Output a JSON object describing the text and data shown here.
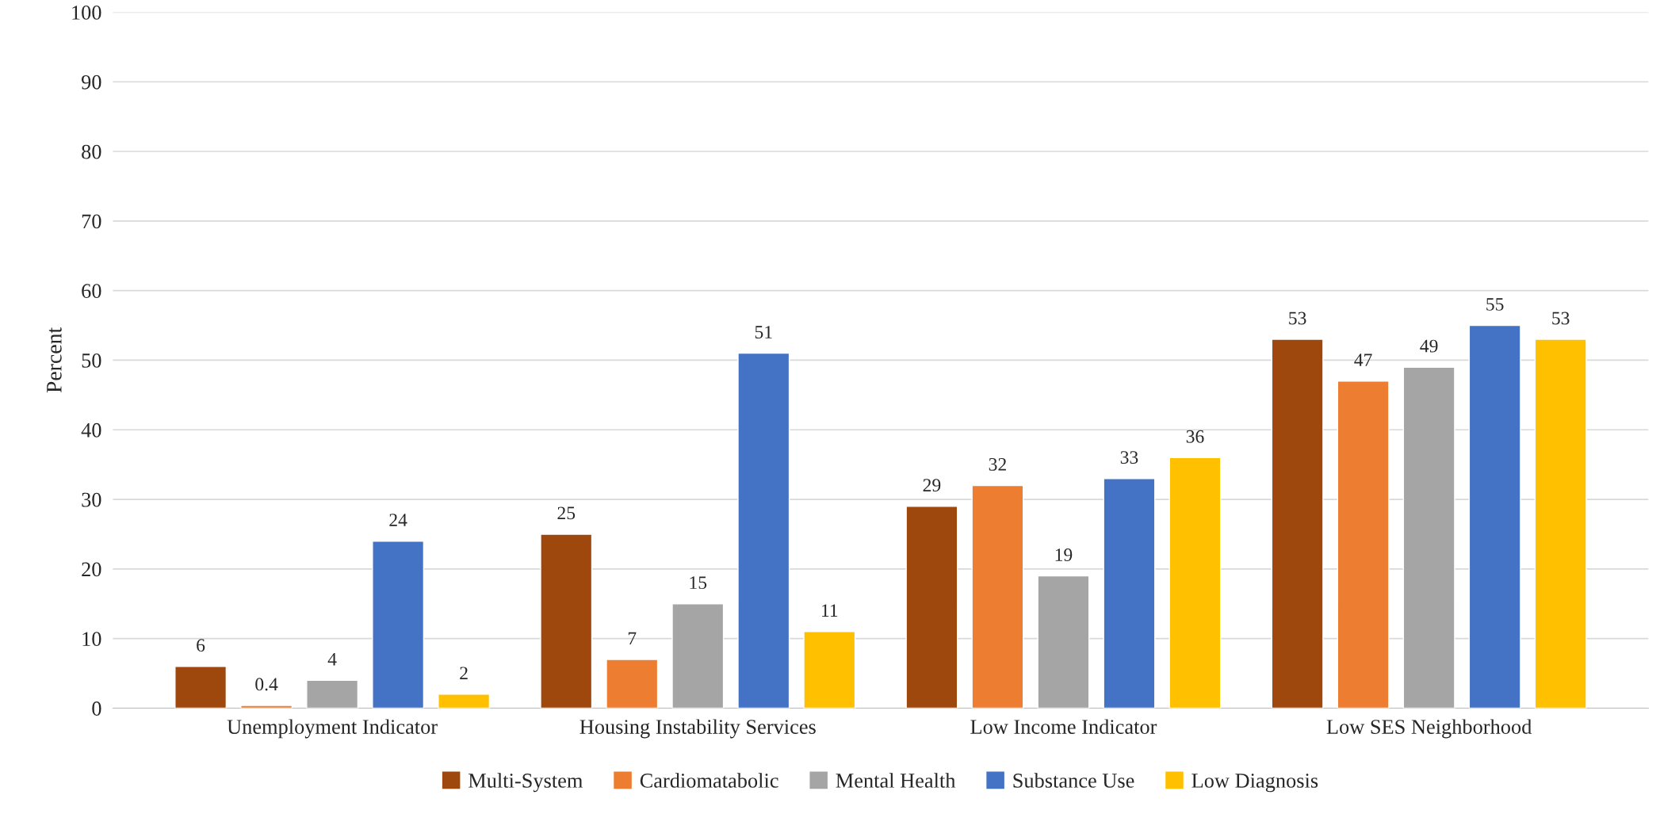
{
  "chart_data": {
    "type": "bar",
    "ylabel": "Percent",
    "categories": [
      "Unemployment Indicator",
      "Housing Instability Services",
      "Low Income Indicator",
      "Low SES Neighborhood"
    ],
    "series": [
      {
        "name": "Multi-System",
        "color": "#9e480e",
        "values": [
          6,
          25,
          29,
          53
        ]
      },
      {
        "name": "Cardiomatabolic",
        "color": "#ed7d31",
        "values": [
          0.4,
          7,
          32,
          47
        ]
      },
      {
        "name": "Mental Health",
        "color": "#a5a5a5",
        "values": [
          4,
          15,
          19,
          49
        ]
      },
      {
        "name": "Substance Use",
        "color": "#4472c4",
        "values": [
          24,
          51,
          33,
          55
        ]
      },
      {
        "name": "Low Diagnosis",
        "color": "#ffc000",
        "values": [
          2,
          11,
          36,
          53
        ]
      }
    ],
    "ylim": [
      0,
      100
    ],
    "yticks": [
      0,
      10,
      20,
      30,
      40,
      50,
      60,
      70,
      80,
      90,
      100
    ],
    "grid": "y",
    "legend": "bottom",
    "data_labels": true
  }
}
